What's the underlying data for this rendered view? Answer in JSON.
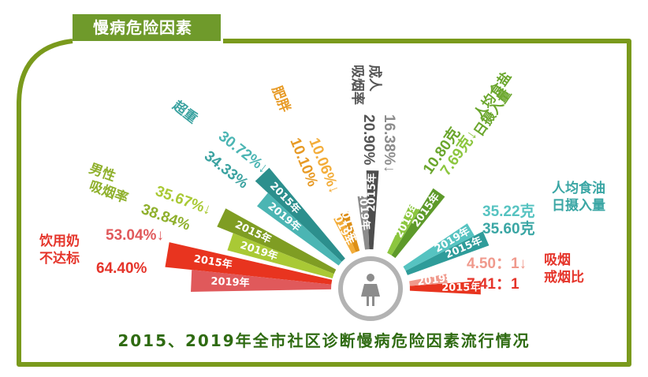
{
  "header_tag": "慢病危险因素",
  "caption": "2015、2019年全市社区诊断慢病危险因素流行情况",
  "center_icon": "female-person-icon",
  "colors": {
    "frame": "#7a9a1c",
    "tag": "#6f9a2b",
    "caption": "#2f6b12",
    "center_ring": "#b3b3b3"
  },
  "chart_data": {
    "type": "bar",
    "layout": "radial-fan",
    "years": [
      "2019年",
      "2015年"
    ],
    "indicators": [
      {
        "id": "milk",
        "name": [
          "饮用奶",
          "不达标"
        ],
        "value_2019": 53.04,
        "value_2015": 64.4,
        "label_2019": "53.04%↓",
        "label_2015": "64.40%",
        "color_2019": "#e0595b",
        "color_2015": "#e8341f",
        "label_color": "#e5342a"
      },
      {
        "id": "male-smoking",
        "name": [
          "男性",
          "吸烟率"
        ],
        "value_2019": 35.67,
        "value_2015": 38.84,
        "label_2019": "35.67%↓",
        "label_2015": "38.84%",
        "color_2019": "#a9c935",
        "color_2015": "#7f9d23",
        "label_color": "#8fb02c"
      },
      {
        "id": "overweight",
        "name": [
          "超重"
        ],
        "value_2019": 30.72,
        "value_2015": 34.33,
        "label_2019": "30.72%↓",
        "label_2015": "34.33%",
        "color_2019": "#4bb5b3",
        "color_2015": "#2c8f8d",
        "label_color": "#3aa2a0"
      },
      {
        "id": "obesity",
        "name": [
          "肥胖"
        ],
        "value_2019": 10.06,
        "value_2015": 10.1,
        "label_2019": "10.06%↓",
        "label_2015": "10.10%",
        "color_2019": "#f3ad3a",
        "color_2015": "#dd8f16",
        "label_color": "#e79a25"
      },
      {
        "id": "adult-smoking",
        "name": [
          "成人",
          "吸烟率"
        ],
        "value_2019": 16.38,
        "value_2015": 20.9,
        "label_2019": "16.38%↓",
        "label_2015": "20.90%",
        "color_2019": "#8c8c8c",
        "color_2015": "#4d4d4d",
        "label_color": "#555555"
      },
      {
        "id": "salt",
        "name": [
          "人均食盐",
          "日摄入量"
        ],
        "value_2019": 7.69,
        "value_2015": 10.8,
        "label_2019": "7.69克↓",
        "label_2015": "10.80克",
        "color_2019": "#8cc63f",
        "color_2015": "#5e9a2a",
        "label_color": "#6aa62c"
      },
      {
        "id": "oil",
        "name": [
          "人均食油",
          "日摄入量"
        ],
        "value_2019": 35.22,
        "value_2015": 35.6,
        "label_2019": "35.22克",
        "label_2015": "35.60克",
        "color_2019": "#56c3c1",
        "color_2015": "#2f9c9a",
        "label_color": "#3aa6a4"
      },
      {
        "id": "smoke-quit",
        "name": [
          "吸烟",
          "戒烟比"
        ],
        "value_2019": 4.5,
        "value_2015": 7.41,
        "label_2019": "4.50：1↓",
        "label_2015": "7.41：1",
        "color_2019": "#f09a8d",
        "color_2015": "#e8341f",
        "label_color": "#e5342a"
      }
    ]
  }
}
